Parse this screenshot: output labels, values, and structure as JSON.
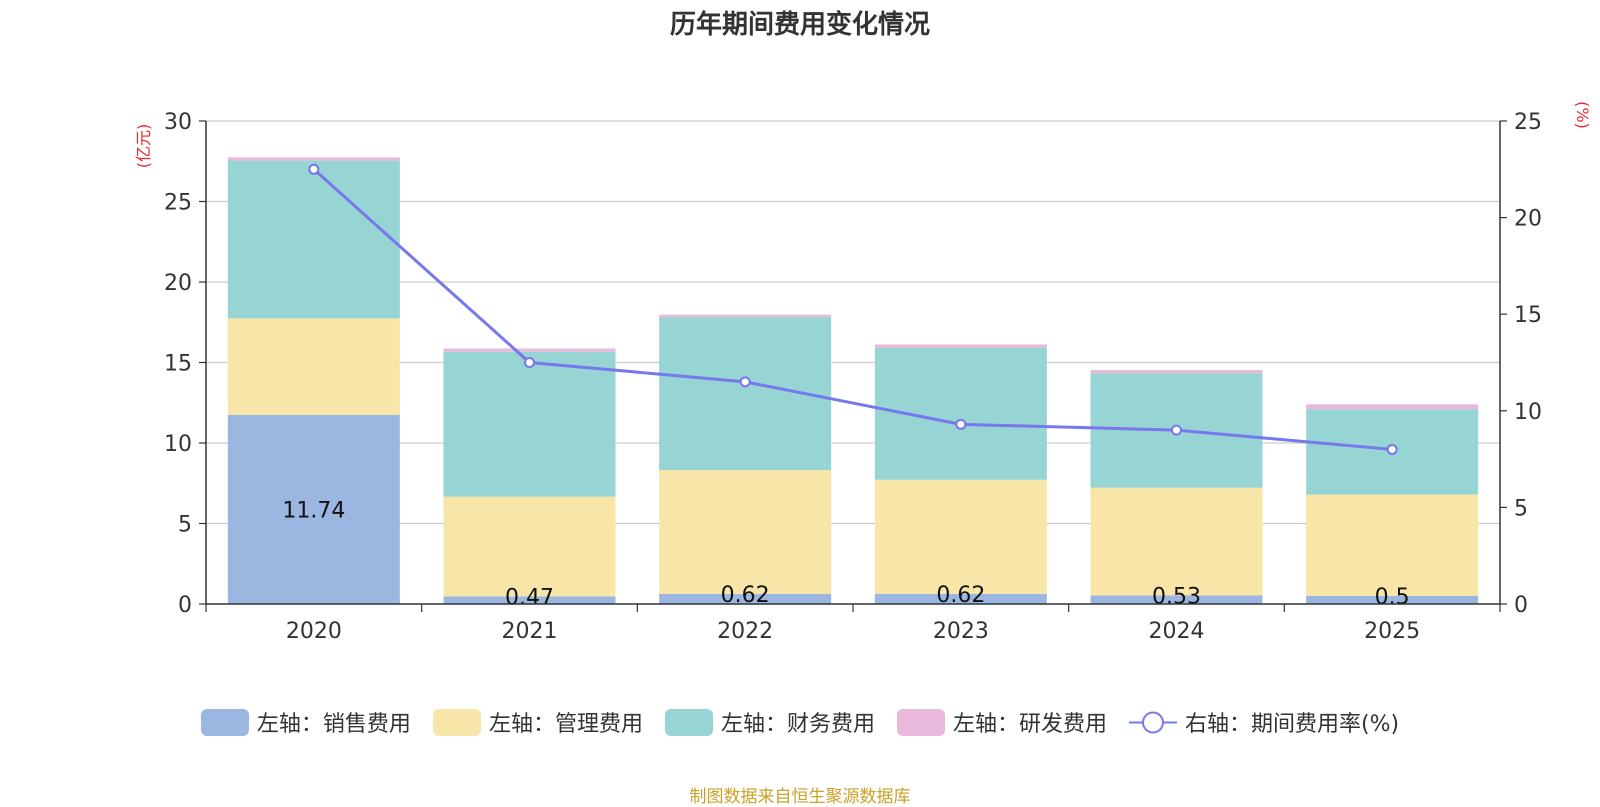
{
  "chart_data": {
    "type": "bar",
    "title": "历年期间费用变化情况",
    "categories": [
      "2020",
      "2021",
      "2022",
      "2023",
      "2024",
      "2025"
    ],
    "series": [
      {
        "name": "左轴：销售费用",
        "axis": "left",
        "kind": "bar",
        "color": "#9bb7e1",
        "values": [
          11.74,
          0.47,
          0.62,
          0.62,
          0.53,
          0.5
        ],
        "labels": [
          "11.74",
          "0.47",
          "0.62",
          "0.62",
          "0.53",
          "0.5"
        ]
      },
      {
        "name": "左轴：管理费用",
        "axis": "left",
        "kind": "bar",
        "color": "#f7e6a8",
        "values": [
          6.0,
          6.2,
          7.7,
          7.1,
          6.7,
          6.3
        ]
      },
      {
        "name": "左轴：财务费用",
        "axis": "left",
        "kind": "bar",
        "color": "#97d4d4",
        "values": [
          9.8,
          9.0,
          9.5,
          8.2,
          7.1,
          5.3
        ]
      },
      {
        "name": "左轴：研发费用",
        "axis": "left",
        "kind": "bar",
        "color": "#e8b9da",
        "values": [
          0.2,
          0.2,
          0.15,
          0.2,
          0.2,
          0.3
        ]
      },
      {
        "name": "右轴：期间费用率(%)",
        "axis": "right",
        "kind": "line",
        "color": "#7777ee",
        "values": [
          22.5,
          12.5,
          11.5,
          9.3,
          9.0,
          8.0
        ]
      }
    ],
    "y_left": {
      "label": "(亿元)",
      "min": 0,
      "max": 30,
      "ticks": [
        "0",
        "5",
        "10",
        "15",
        "20",
        "25",
        "30"
      ]
    },
    "y_right": {
      "label": "(%)",
      "min": 0,
      "max": 25,
      "ticks": [
        "0",
        "5",
        "10",
        "15",
        "20",
        "25"
      ]
    },
    "grid": true,
    "legend_position": "bottom"
  },
  "legend": {
    "items": [
      {
        "label": "左轴：销售费用",
        "color": "#9bb7e1",
        "kind": "bar"
      },
      {
        "label": "左轴：管理费用",
        "color": "#f7e6a8",
        "kind": "bar"
      },
      {
        "label": "左轴：财务费用",
        "color": "#97d4d4",
        "kind": "bar"
      },
      {
        "label": "左轴：研发费用",
        "color": "#e8b9da",
        "kind": "bar"
      },
      {
        "label": "右轴：期间费用率(%)",
        "color": "#7777ee",
        "kind": "line"
      }
    ]
  },
  "footer": {
    "source": "制图数据来自恒生聚源数据库"
  },
  "colors": {
    "grid": "#cccccc",
    "axis": "#333333",
    "unit": "#e8262c",
    "source": "#c9a227"
  }
}
